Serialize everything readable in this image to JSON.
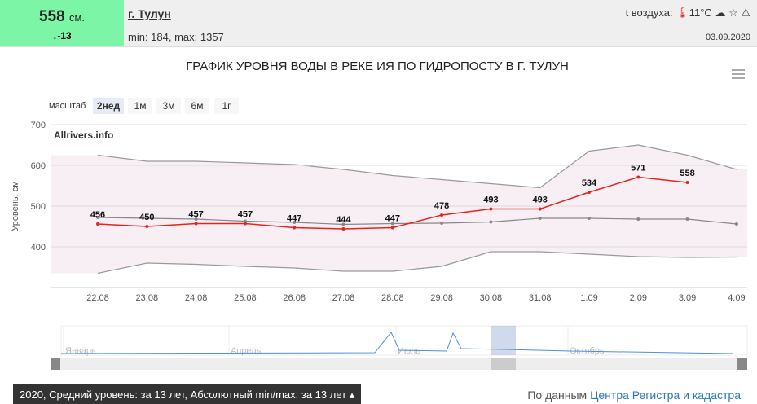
{
  "header": {
    "level": "558",
    "unit": "см.",
    "change": "↓-13",
    "city": "г. Тулун",
    "minmax": "min: 184, max: 1357",
    "air_label": "t воздуха:",
    "air_temp": "11°C",
    "date": "03.09.2020"
  },
  "chart_data": {
    "type": "line",
    "title": "ГРАФИК УРОВНЯ ВОДЫ В РЕКЕ ИЯ ПО ГИДРОПОСТУ В Г. ТУЛУН",
    "zoom_label": "масштаб",
    "zoom_buttons": [
      "2нед",
      "1м",
      "3м",
      "6м",
      "1г"
    ],
    "watermark": "Allrivers.info",
    "y_label": "Уровень, см",
    "categories": [
      "22.08",
      "23.08",
      "24.08",
      "25.08",
      "26.08",
      "27.08",
      "28.08",
      "29.08",
      "30.08",
      "31.08",
      "1.09",
      "2.09",
      "3.09",
      "4.09"
    ],
    "ylim": [
      300,
      700
    ],
    "yticks": [
      400,
      500,
      600,
      700
    ],
    "grid": true,
    "series": [
      {
        "color": "#e8231b",
        "values": [
          456,
          450,
          457,
          457,
          447,
          444,
          447,
          478,
          493,
          493,
          534,
          571,
          558,
          null
        ]
      },
      {
        "color": "#888888",
        "values": [
          472,
          470,
          468,
          463,
          460,
          455,
          457,
          458,
          461,
          470,
          470,
          468,
          468,
          456
        ]
      }
    ],
    "band": {
      "color": "#f7eff4",
      "upper": [
        625,
        610,
        610,
        606,
        602,
        590,
        575,
        565,
        555,
        545,
        635,
        650,
        625,
        590
      ],
      "lower": [
        335,
        360,
        357,
        352,
        348,
        340,
        340,
        352,
        388,
        388,
        382,
        376,
        374,
        375
      ]
    },
    "navigator": {
      "months": [
        "Январь",
        "Апрель",
        "Июль",
        "Октябрь"
      ]
    }
  },
  "footer": {
    "selector": "2020, Средний уровень: за 13 лет, Абсолютный min/max: за 13 лет",
    "source_prefix": "По данным",
    "source_link": "Центра Регистра и кадастра"
  }
}
